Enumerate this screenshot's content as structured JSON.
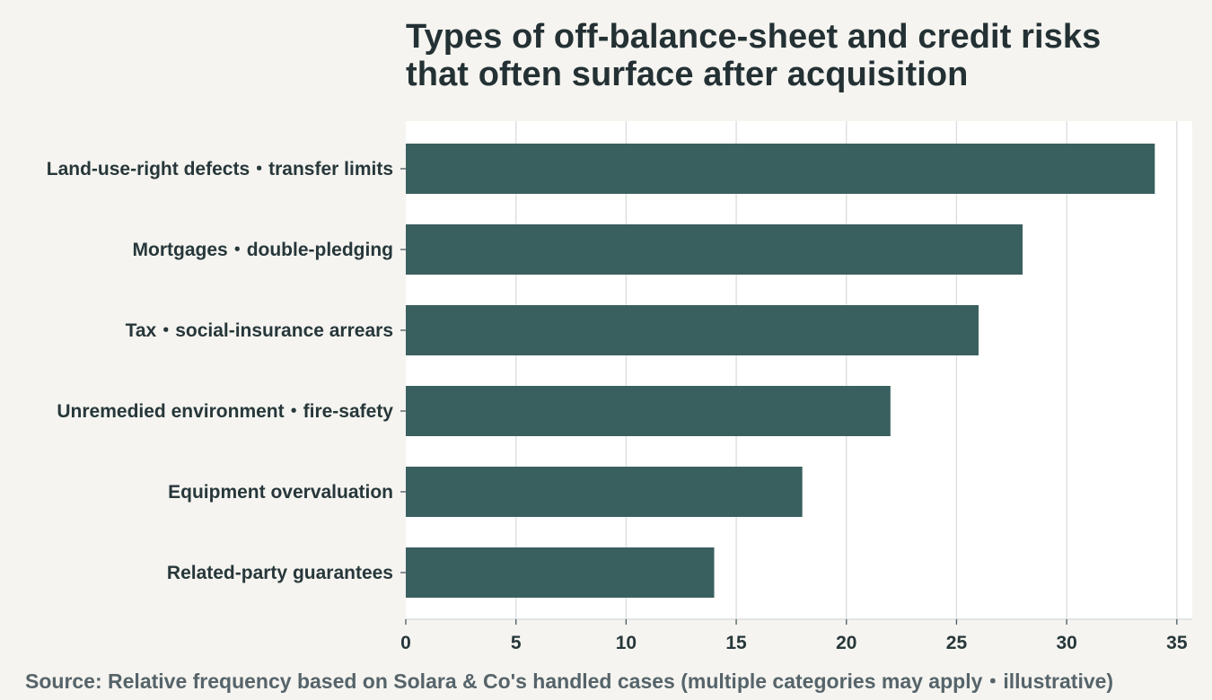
{
  "title": {
    "line1": "Types of off-balance-sheet and credit risks",
    "line2": "that often surface after acquisition"
  },
  "source": "Source: Relative frequency based on Solara & Co's handled cases (multiple categories may apply・illustrative)",
  "colors": {
    "background": "#f5f4f0",
    "plot_background": "#ffffff",
    "bar": "#3a5f5f",
    "grid": "#dadddd",
    "text": "#27373a",
    "source_text": "#56646a"
  },
  "chart_data": {
    "type": "bar",
    "orientation": "horizontal",
    "categories": [
      "Land-use-right defects・transfer limits",
      "Mortgages・double-pledging",
      "Tax・social-insurance arrears",
      "Unremedied environment・fire-safety",
      "Equipment overvaluation",
      "Related-party guarantees"
    ],
    "values": [
      34,
      28,
      26,
      22,
      18,
      14
    ],
    "xlim": [
      0,
      35.7
    ],
    "xticks": [
      0,
      5,
      10,
      15,
      20,
      25,
      30,
      35
    ],
    "grid": "vertical",
    "legend": "none",
    "xlabel": "",
    "ylabel": ""
  }
}
